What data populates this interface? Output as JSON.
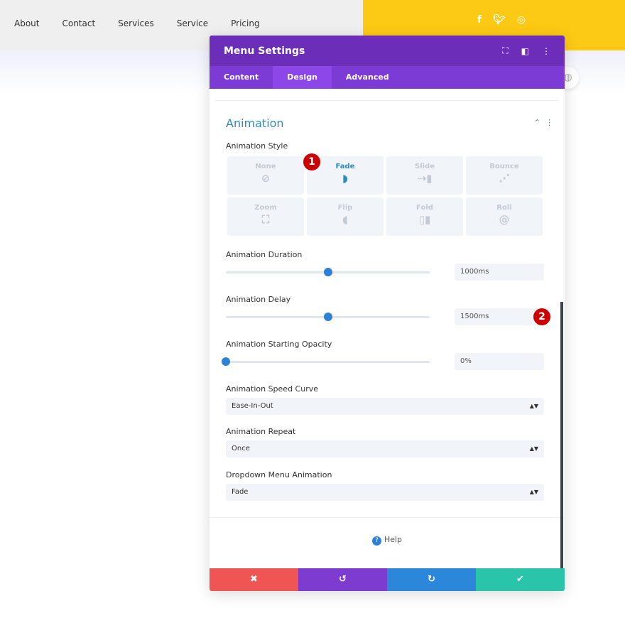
{
  "nav": {
    "items": [
      "About",
      "Contact",
      "Services",
      "Service",
      "Pricing"
    ]
  },
  "social": {
    "icons": [
      "facebook-icon",
      "twitter-icon",
      "instagram-icon"
    ]
  },
  "panel": {
    "title": "Menu Settings",
    "tabs": [
      "Content",
      "Design",
      "Advanced"
    ],
    "active_tab": "Design",
    "section": "Animation",
    "style_label": "Animation Style",
    "styles": [
      {
        "label": "None",
        "icon": "no-icon"
      },
      {
        "label": "Fade",
        "icon": "fade-icon",
        "selected": true
      },
      {
        "label": "Slide",
        "icon": "slide-icon"
      },
      {
        "label": "Bounce",
        "icon": "bounce-icon"
      },
      {
        "label": "Zoom",
        "icon": "zoom-icon"
      },
      {
        "label": "Flip",
        "icon": "flip-icon"
      },
      {
        "label": "Fold",
        "icon": "fold-icon"
      },
      {
        "label": "Roll",
        "icon": "roll-icon"
      }
    ],
    "duration": {
      "label": "Animation Duration",
      "value": "1000ms",
      "fraction": 0.5
    },
    "delay": {
      "label": "Animation Delay",
      "value": "1500ms",
      "fraction": 0.5
    },
    "opacity": {
      "label": "Animation Starting Opacity",
      "value": "0%",
      "fraction": 0
    },
    "curve": {
      "label": "Animation Speed Curve",
      "value": "Ease-In-Out"
    },
    "repeat": {
      "label": "Animation Repeat",
      "value": "Once"
    },
    "dropdown": {
      "label": "Dropdown Menu Animation",
      "value": "Fade"
    },
    "help": "Help",
    "badges": [
      "1",
      "2"
    ]
  },
  "colors": {
    "header": "#6c2eb9",
    "tabs": "#7b3bd4",
    "accent": "#2e8bc0",
    "cancel": "#ef5555",
    "undo": "#7e3bd0",
    "redo": "#2b87da",
    "save": "#29c4a9",
    "yellow": "#fcc914"
  }
}
